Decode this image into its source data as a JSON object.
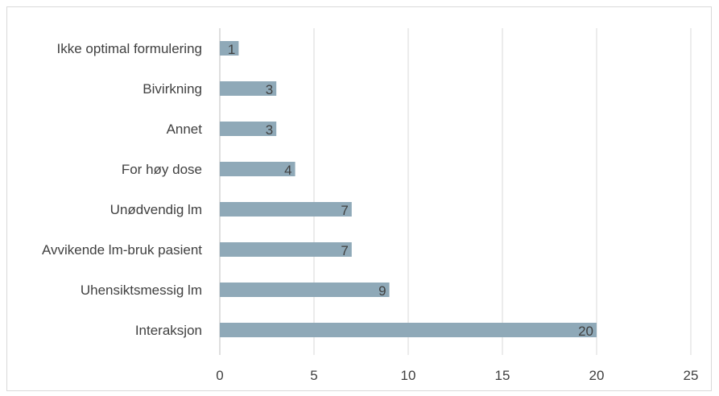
{
  "chart_data": {
    "type": "bar",
    "orientation": "horizontal",
    "title": "",
    "xlabel": "",
    "ylabel": "",
    "categories": [
      "Ikke optimal formulering",
      "Bivirkning",
      "Annet",
      "For høy dose",
      "Unødvendig lm",
      "Avvikende lm-bruk pasient",
      "Uhensiktsmessig lm",
      "Interaksjon"
    ],
    "values": [
      1,
      3,
      3,
      4,
      7,
      7,
      9,
      20
    ],
    "xlim": [
      0,
      25
    ],
    "xticks": [
      "0",
      "5",
      "10",
      "15",
      "20",
      "25"
    ],
    "grid": "vertical",
    "legend": "none",
    "data_labels": "inside-end",
    "bar_color": "#8fa9b8"
  }
}
